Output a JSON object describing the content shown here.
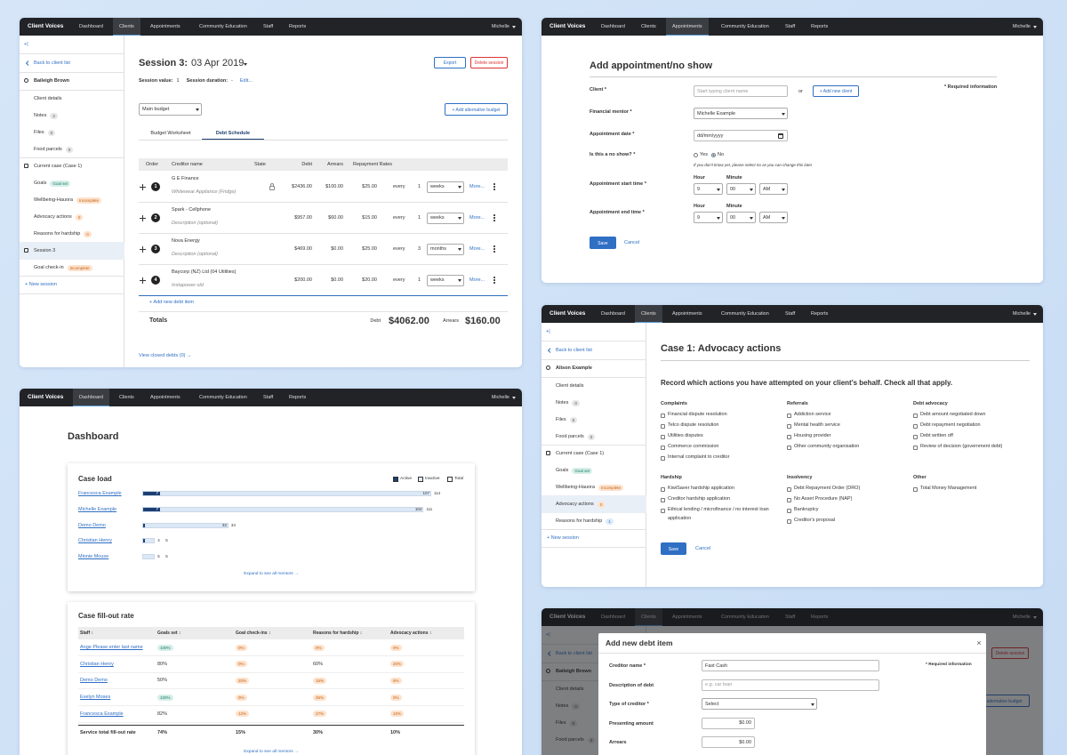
{
  "nav": {
    "brand": "Client Voices",
    "items": [
      "Dashboard",
      "Clients",
      "Appointments",
      "Community Education",
      "Staff",
      "Reports"
    ],
    "user": "Michelle"
  },
  "sidebars": [
    {
      "collapse": "+|",
      "back": "Back to client list",
      "client": "Baileigh Brown",
      "items": [
        {
          "label": "Client details"
        },
        {
          "label": "Notes",
          "badge": "2",
          "tone": "neutral"
        },
        {
          "label": "Files",
          "badge": "0",
          "tone": "neutral"
        },
        {
          "label": "Food parcels",
          "badge": "0",
          "tone": "neutral"
        }
      ],
      "case": "Current case (Case 1)",
      "case_items": [
        {
          "label": "Goals",
          "badge": "Goal set",
          "tone": "success"
        },
        {
          "label": "Wellbeing-Hauora",
          "badge": "Incomplete",
          "tone": "warning"
        },
        {
          "label": "Advocacy actions",
          "badge": "0",
          "tone": "warning"
        },
        {
          "label": "Reasons for hardship",
          "badge": "0",
          "tone": "warning"
        }
      ],
      "session": "Session 3",
      "session_active": true,
      "session_items": [
        {
          "label": "Goal check-in",
          "badge": "Incomplete",
          "tone": "warning"
        }
      ],
      "new_session": "+ New session"
    },
    {
      "collapse": "+|",
      "back": "Back to client list",
      "client": "Alison Example",
      "items": [
        {
          "label": "Client details"
        },
        {
          "label": "Notes",
          "badge": "0",
          "tone": "neutral"
        },
        {
          "label": "Files",
          "badge": "5",
          "tone": "neutral"
        },
        {
          "label": "Food parcels",
          "badge": "0",
          "tone": "neutral"
        }
      ],
      "case": "Current case (Case 1)",
      "case_items": [
        {
          "label": "Goals",
          "badge": "Goal set",
          "tone": "success"
        },
        {
          "label": "Wellbeing-Hauora",
          "badge": "Incomplete",
          "tone": "warning"
        },
        {
          "label": "Advocacy actions",
          "badge": "0",
          "tone": "warning",
          "active": true
        },
        {
          "label": "Reasons for hardship",
          "badge": "1",
          "tone": "info"
        }
      ],
      "new_session": "+ New session"
    },
    {
      "collapse": "+|",
      "back": "Back to client list",
      "client": "Baileigh Brown",
      "items": [
        {
          "label": "Client details"
        },
        {
          "label": "Notes",
          "badge": "0",
          "tone": "neutral"
        },
        {
          "label": "Files",
          "badge": "0",
          "tone": "neutral"
        },
        {
          "label": "Food parcels",
          "badge": "0",
          "tone": "neutral"
        }
      ]
    }
  ],
  "session_page": {
    "title": "Session 3:",
    "date": "03 Apr 2019",
    "export": "Export",
    "delete": "Delete session",
    "value_label": "Session value:",
    "value": "1",
    "duration_label": "Session duration:",
    "duration": "-",
    "edit": "Edit...",
    "budget": "Main budget",
    "add_budget": "+ Add alternative budget",
    "tabs": [
      {
        "label": "Budget Worksheet"
      },
      {
        "label": "Debt Schedule",
        "active": true
      }
    ],
    "columns": [
      "Order",
      "Creditor name",
      "State",
      "Debt",
      "Arrears",
      "Repayment Rates"
    ],
    "every": "every",
    "more": "More...",
    "debts": [
      {
        "order": "1",
        "name": "G E Finance",
        "desc": "Whitewear Appliance (Fridge)",
        "locked": true,
        "debt": "$2436.00",
        "arrears": "$100.00",
        "rate": "$25.00",
        "n": "1",
        "period": "weeks"
      },
      {
        "order": "2",
        "name": "Spark - Cellphone",
        "desc": "Description (optional)",
        "debt": "$957.00",
        "arrears": "$60.00",
        "rate": "$15.00",
        "n": "1",
        "period": "weeks"
      },
      {
        "order": "3",
        "name": "Nova Energy",
        "desc": "Description (optional)",
        "debt": "$469.00",
        "arrears": "$0.00",
        "rate": "$25.00",
        "n": "3",
        "period": "months"
      },
      {
        "order": "4",
        "name": "Baycorp (NZ) Ltd (04 Utilities)",
        "desc": "Instapower old",
        "debt": "$200.00",
        "arrears": "$0.00",
        "rate": "$20.00",
        "n": "1",
        "period": "weeks"
      }
    ],
    "add_debt": "+ Add new debt item",
    "totals": "Totals",
    "debt_total_label": "Debt",
    "debt_total": "$4062.00",
    "arrears_total_label": "Arrears",
    "arrears_total": "$160.00",
    "closed": "View closed debts (0) →"
  },
  "appointment": {
    "title": "Add appointment/no show",
    "client_label": "Client *",
    "client_placeholder": "Start typing client name",
    "or": "or",
    "add_client": "+ Add new client",
    "required": "* Required information",
    "mentor_label": "Financial mentor *",
    "mentor": "Michelle Example",
    "date_label": "Appointment date *",
    "date_placeholder": "dd/mm/yyyy",
    "no_show_label": "Is this a no show? *",
    "options": [
      {
        "label": "Yes"
      },
      {
        "label": "No",
        "checked": true
      }
    ],
    "no_show_note": "If you don't know yet, please select no as you can change this later",
    "times": [
      {
        "label": "Appointment start time *",
        "hour_label": "Hour",
        "minute_label": "Minute",
        "hour": "9",
        "minute": "00",
        "ampm": "AM"
      },
      {
        "label": "Appointment end time *",
        "hour_label": "Hour",
        "minute_label": "Minute",
        "hour": "9",
        "minute": "00",
        "ampm": "AM"
      }
    ],
    "save": "Save",
    "cancel": "Cancel"
  },
  "dashboard": {
    "title": "Dashboard",
    "case_load": {
      "title": "Case load",
      "legend": [
        {
          "label": "Active",
          "color": "#1d3f73"
        },
        {
          "label": "Inactive",
          "color": "#dde8f5"
        },
        {
          "label": "Total",
          "color": "#ffffff"
        }
      ],
      "rows": [
        {
          "name": "Francesca Example",
          "active": 7,
          "inactive": 107,
          "total": 114
        },
        {
          "name": "Michelle Example",
          "active": 7,
          "inactive": 104,
          "total": 111
        },
        {
          "name": "Demo Demo",
          "active": 1,
          "inactive": 33,
          "total": 34
        },
        {
          "name": "Christian Henry",
          "active": 1,
          "inactive": 4,
          "total": 5
        },
        {
          "name": "Minnie Mouse",
          "active": 0,
          "inactive": 5,
          "total": 5
        }
      ],
      "expand": "Expand to see all mentors →"
    },
    "fill_rate": {
      "title": "Case fill-out rate",
      "columns": [
        "Staff ↕",
        "Goals set ↕",
        "Goal check-ins ↕",
        "Reasons for hardship ↕",
        "Advocacy actions ↕"
      ],
      "rows": [
        {
          "name": "Ange Please enter last name",
          "cells": [
            {
              "text": "100%",
              "tone": "success"
            },
            {
              "text": "0%",
              "tone": "warning"
            },
            {
              "text": "0%",
              "tone": "warning"
            },
            {
              "text": "0%",
              "tone": "warning"
            }
          ]
        },
        {
          "name": "Christian Henry",
          "cells": [
            {
              "text": "80%"
            },
            {
              "text": "0%",
              "tone": "warning"
            },
            {
              "text": "60%"
            },
            {
              "text": "20%",
              "tone": "warning"
            }
          ]
        },
        {
          "name": "Demo Demo",
          "cells": [
            {
              "text": "50%"
            },
            {
              "text": "20%",
              "tone": "warning"
            },
            {
              "text": "16%",
              "tone": "warning"
            },
            {
              "text": "6%",
              "tone": "warning"
            }
          ]
        },
        {
          "name": "Evelyn Moses",
          "cells": [
            {
              "text": "100%",
              "tone": "success"
            },
            {
              "text": "0%",
              "tone": "warning"
            },
            {
              "text": "25%",
              "tone": "warning"
            },
            {
              "text": "0%",
              "tone": "warning"
            }
          ]
        },
        {
          "name": "Francesca Example",
          "cells": [
            {
              "text": "82%"
            },
            {
              "text": "12%",
              "tone": "warning"
            },
            {
              "text": "27%",
              "tone": "warning"
            },
            {
              "text": "10%",
              "tone": "warning"
            }
          ]
        }
      ],
      "total": {
        "name": "Service total fill-out rate",
        "cells": [
          {
            "text": "74%"
          },
          {
            "text": "15%"
          },
          {
            "text": "30%"
          },
          {
            "text": "10%"
          }
        ]
      },
      "expand": "Expand to see all mentors →"
    }
  },
  "advocacy": {
    "title": "Case 1: Advocacy actions",
    "instruction": "Record which actions you have attempted on your client's behalf. Check all that apply.",
    "groups": [
      {
        "title": "Complaints",
        "options": [
          "Financial dispute resolution",
          "Telco dispute resolution",
          "Utilities disputes",
          "Commerce commission",
          "Internal complaint to creditor"
        ]
      },
      {
        "title": "Referrals",
        "options": [
          "Addiction service",
          "Mental health service",
          "Housing provider",
          "Other community organisation"
        ]
      },
      {
        "title": "Debt advocacy",
        "options": [
          "Debt amount negotiated down",
          "Debt repayment negotiation",
          "Debt written off",
          "Review of decision (government debt)"
        ]
      },
      {
        "title": "Hardship",
        "options": [
          "KiwiSaver hardship application",
          "Creditor hardship application",
          "Ethical lending / microfinance / no interest loan application"
        ]
      },
      {
        "title": "Insolvency",
        "options": [
          "Debt Repayment Order (DRO)",
          "No Asset Procedure (NAP)",
          "Bankruptcy",
          "Creditor's proposal"
        ]
      },
      {
        "title": "Other",
        "options": [
          "Total Money Management"
        ]
      }
    ],
    "save": "Save",
    "cancel": "Cancel"
  },
  "debt_modal": {
    "title": "Add new debt item",
    "close": "×",
    "required": "* Required information",
    "fields": [
      {
        "label": "Creditor name *",
        "value": "Fast Cash",
        "kind": "input"
      },
      {
        "label": "Description of debt",
        "placeholder": "e.g. car loan",
        "kind": "input"
      },
      {
        "label": "Type of creditor *",
        "value": "Select",
        "kind": "select"
      },
      {
        "label": "Presenting amount",
        "value": "$0.00",
        "kind": "amount"
      },
      {
        "label": "Arrears",
        "value": "$0.00",
        "kind": "amount"
      }
    ]
  }
}
